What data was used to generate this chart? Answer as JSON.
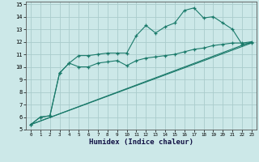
{
  "xlabel": "Humidex (Indice chaleur)",
  "background_color": "#cce8e8",
  "grid_color": "#aacccc",
  "line_color": "#1a7a6a",
  "xlim": [
    -0.5,
    23.5
  ],
  "ylim": [
    5,
    15.2
  ],
  "xticks": [
    0,
    1,
    2,
    3,
    4,
    5,
    6,
    7,
    8,
    9,
    10,
    11,
    12,
    13,
    14,
    15,
    16,
    17,
    18,
    19,
    20,
    21,
    22,
    23
  ],
  "yticks": [
    5,
    6,
    7,
    8,
    9,
    10,
    11,
    12,
    13,
    14,
    15
  ],
  "line1_x": [
    0,
    1,
    2,
    3,
    4,
    5,
    6,
    7,
    8,
    9,
    10,
    11,
    12,
    13,
    14,
    15,
    16,
    17,
    18,
    19,
    20,
    21,
    22,
    23
  ],
  "line1_y": [
    5.4,
    6.0,
    6.1,
    9.5,
    10.3,
    10.9,
    10.9,
    11.0,
    11.1,
    11.1,
    11.1,
    12.5,
    13.3,
    12.7,
    13.2,
    13.5,
    14.5,
    14.7,
    13.9,
    14.0,
    13.5,
    13.0,
    11.8,
    11.9
  ],
  "line2_x": [
    0,
    1,
    2,
    3,
    4,
    5,
    6,
    7,
    8,
    9,
    10,
    11,
    12,
    13,
    14,
    15,
    16,
    17,
    18,
    19,
    20,
    21,
    22,
    23
  ],
  "line2_y": [
    5.4,
    6.0,
    6.1,
    9.5,
    10.3,
    10.0,
    10.0,
    10.3,
    10.4,
    10.5,
    10.1,
    10.5,
    10.7,
    10.8,
    10.9,
    11.0,
    11.2,
    11.4,
    11.5,
    11.7,
    11.8,
    11.9,
    11.9,
    12.0
  ],
  "line3_x": [
    0,
    23
  ],
  "line3_y": [
    5.4,
    11.9
  ],
  "line4_x": [
    0,
    23
  ],
  "line4_y": [
    5.4,
    12.0
  ]
}
